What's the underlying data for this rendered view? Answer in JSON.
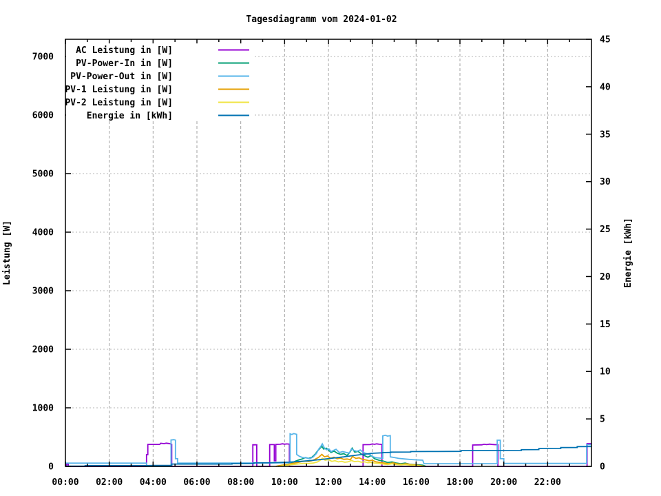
{
  "title": "Tagesdiagramm vom 2024-01-02",
  "axes": {
    "left": {
      "label": "Leistung [W]",
      "tick_values": [
        0,
        1000,
        2000,
        3000,
        4000,
        5000,
        6000,
        7000
      ],
      "tick_labels": [
        "0",
        "1000",
        "2000",
        "3000",
        "4000",
        "5000",
        "6000",
        "7000"
      ],
      "range": [
        0,
        7294
      ]
    },
    "right": {
      "label": "Energie [kWh]",
      "tick_values": [
        0,
        5,
        10,
        15,
        20,
        25,
        30,
        35,
        40,
        45
      ],
      "tick_labels": [
        "0",
        "5",
        "10",
        "15",
        "20",
        "25",
        "30",
        "35",
        "40",
        "45"
      ],
      "range": [
        0,
        45
      ]
    },
    "x": {
      "tick_hours": [
        0,
        2,
        4,
        6,
        8,
        10,
        12,
        14,
        16,
        18,
        20,
        22
      ],
      "tick_labels": [
        "00:00",
        "02:00",
        "04:00",
        "06:00",
        "08:00",
        "10:00",
        "12:00",
        "14:00",
        "16:00",
        "18:00",
        "20:00",
        "22:00"
      ],
      "minor_hours": [
        1,
        3,
        5,
        7,
        9,
        11,
        13,
        15,
        17,
        19,
        21,
        23
      ],
      "range": [
        0,
        24
      ]
    }
  },
  "colors": {
    "grid": "#a0a0a0",
    "axis": "#000000",
    "background": "#ffffff"
  },
  "legend": {
    "position": "top-left"
  },
  "chart_data": {
    "type": "line",
    "title": "Tagesdiagramm vom 2024-01-02",
    "xlabel": "",
    "ylabel": "Leistung [W]",
    "y2label": "Energie [kWh]",
    "xlim_hours": [
      0,
      24
    ],
    "ylim_left_W": [
      0,
      7294
    ],
    "ylim_right_kWh": [
      0,
      45
    ],
    "grid": true,
    "legend_position": "top-left",
    "series": [
      {
        "name": "AC Leistung in [W]",
        "color": "#9400D3",
        "axis": "left",
        "points": [
          [
            0,
            0
          ],
          [
            0.05,
            0
          ],
          [
            0.05,
            40
          ],
          [
            0.13,
            40
          ],
          [
            0.13,
            0
          ],
          [
            3.7,
            0
          ],
          [
            3.7,
            200
          ],
          [
            3.76,
            200
          ],
          [
            3.76,
            375
          ],
          [
            4.3,
            375
          ],
          [
            4.35,
            395
          ],
          [
            4.5,
            388
          ],
          [
            4.6,
            397
          ],
          [
            4.72,
            390
          ],
          [
            4.85,
            378
          ],
          [
            4.85,
            0
          ],
          [
            8.55,
            0
          ],
          [
            8.55,
            368
          ],
          [
            8.73,
            368
          ],
          [
            8.73,
            0
          ],
          [
            9.32,
            0
          ],
          [
            9.32,
            372
          ],
          [
            9.53,
            372
          ],
          [
            9.53,
            95
          ],
          [
            9.6,
            95
          ],
          [
            9.6,
            375
          ],
          [
            9.8,
            378
          ],
          [
            9.9,
            386
          ],
          [
            10.0,
            379
          ],
          [
            10.1,
            384
          ],
          [
            10.22,
            380
          ],
          [
            10.22,
            0
          ],
          [
            13.58,
            0
          ],
          [
            13.58,
            370
          ],
          [
            13.9,
            372
          ],
          [
            14.0,
            383
          ],
          [
            14.1,
            377
          ],
          [
            14.2,
            385
          ],
          [
            14.32,
            378
          ],
          [
            14.44,
            375
          ],
          [
            14.44,
            0
          ],
          [
            18.58,
            0
          ],
          [
            18.58,
            365
          ],
          [
            19.0,
            368
          ],
          [
            19.1,
            378
          ],
          [
            19.22,
            372
          ],
          [
            19.35,
            380
          ],
          [
            19.48,
            374
          ],
          [
            19.6,
            371
          ],
          [
            19.73,
            371
          ],
          [
            19.73,
            0
          ],
          [
            23.8,
            0
          ],
          [
            23.8,
            388
          ],
          [
            24,
            388
          ]
        ]
      },
      {
        "name": "PV-Power-In in [W]",
        "color": "#009E73",
        "axis": "left",
        "points": [
          [
            9.7,
            0
          ],
          [
            9.85,
            14
          ],
          [
            10.0,
            20
          ],
          [
            10.15,
            34
          ],
          [
            10.3,
            55
          ],
          [
            10.5,
            90
          ],
          [
            10.65,
            110
          ],
          [
            10.8,
            126
          ],
          [
            10.95,
            150
          ],
          [
            11.1,
            136
          ],
          [
            11.25,
            156
          ],
          [
            11.4,
            210
          ],
          [
            11.5,
            262
          ],
          [
            11.6,
            302
          ],
          [
            11.7,
            345
          ],
          [
            11.78,
            296
          ],
          [
            11.9,
            312
          ],
          [
            12.0,
            282
          ],
          [
            12.12,
            236
          ],
          [
            12.25,
            262
          ],
          [
            12.4,
            226
          ],
          [
            12.55,
            206
          ],
          [
            12.7,
            216
          ],
          [
            12.85,
            186
          ],
          [
            13.0,
            252
          ],
          [
            13.08,
            312
          ],
          [
            13.2,
            242
          ],
          [
            13.35,
            256
          ],
          [
            13.5,
            212
          ],
          [
            13.65,
            182
          ],
          [
            13.8,
            156
          ],
          [
            13.95,
            186
          ],
          [
            14.1,
            132
          ],
          [
            14.3,
            106
          ],
          [
            14.5,
            92
          ],
          [
            14.7,
            66
          ],
          [
            14.9,
            76
          ],
          [
            15.1,
            56
          ],
          [
            15.3,
            46
          ],
          [
            15.5,
            56
          ],
          [
            15.7,
            36
          ],
          [
            15.9,
            31
          ],
          [
            16.1,
            26
          ],
          [
            16.3,
            20
          ],
          [
            16.45,
            0
          ]
        ]
      },
      {
        "name": "PV-Power-Out in [W]",
        "color": "#56B4E9",
        "axis": "left",
        "points": [
          [
            0,
            55
          ],
          [
            3.7,
            55
          ],
          [
            3.7,
            0
          ],
          [
            4.82,
            0
          ],
          [
            4.82,
            450
          ],
          [
            4.95,
            457
          ],
          [
            5.02,
            448
          ],
          [
            5.02,
            130
          ],
          [
            5.12,
            130
          ],
          [
            5.12,
            55
          ],
          [
            8.3,
            58
          ],
          [
            10.25,
            60
          ],
          [
            10.25,
            555
          ],
          [
            10.33,
            545
          ],
          [
            10.42,
            560
          ],
          [
            10.55,
            548
          ],
          [
            10.55,
            205
          ],
          [
            10.68,
            170
          ],
          [
            10.82,
            152
          ],
          [
            11.0,
            145
          ],
          [
            11.15,
            132
          ],
          [
            11.3,
            160
          ],
          [
            11.45,
            220
          ],
          [
            11.55,
            290
          ],
          [
            11.65,
            340
          ],
          [
            11.72,
            385
          ],
          [
            11.82,
            312
          ],
          [
            11.92,
            282
          ],
          [
            12.02,
            300
          ],
          [
            12.12,
            252
          ],
          [
            12.22,
            270
          ],
          [
            12.35,
            292
          ],
          [
            12.5,
            237
          ],
          [
            12.65,
            252
          ],
          [
            12.8,
            240
          ],
          [
            12.95,
            226
          ],
          [
            13.05,
            300
          ],
          [
            13.17,
            272
          ],
          [
            13.3,
            256
          ],
          [
            13.45,
            280
          ],
          [
            13.6,
            236
          ],
          [
            13.75,
            216
          ],
          [
            13.9,
            200
          ],
          [
            14.05,
            162
          ],
          [
            14.2,
            147
          ],
          [
            14.4,
            140
          ],
          [
            14.48,
            140
          ],
          [
            14.48,
            520
          ],
          [
            14.6,
            532
          ],
          [
            14.7,
            516
          ],
          [
            14.82,
            526
          ],
          [
            14.82,
            162
          ],
          [
            15.0,
            152
          ],
          [
            15.2,
            136
          ],
          [
            15.5,
            126
          ],
          [
            15.8,
            116
          ],
          [
            16.05,
            110
          ],
          [
            16.3,
            106
          ],
          [
            16.36,
            46
          ],
          [
            19.7,
            46
          ],
          [
            19.7,
            447
          ],
          [
            19.84,
            447
          ],
          [
            19.84,
            130
          ],
          [
            20.0,
            130
          ],
          [
            20.0,
            50
          ],
          [
            23.78,
            50
          ],
          [
            23.78,
            370
          ],
          [
            24,
            370
          ]
        ]
      },
      {
        "name": "PV-1 Leistung in [W]",
        "color": "#E69F00",
        "axis": "left",
        "points": [
          [
            9.6,
            0
          ],
          [
            9.78,
            14
          ],
          [
            9.95,
            24
          ],
          [
            10.15,
            34
          ],
          [
            10.35,
            50
          ],
          [
            10.55,
            64
          ],
          [
            10.75,
            80
          ],
          [
            10.95,
            90
          ],
          [
            11.1,
            82
          ],
          [
            11.25,
            96
          ],
          [
            11.4,
            124
          ],
          [
            11.55,
            154
          ],
          [
            11.7,
            205
          ],
          [
            11.82,
            164
          ],
          [
            11.95,
            176
          ],
          [
            12.1,
            140
          ],
          [
            12.25,
            156
          ],
          [
            12.4,
            130
          ],
          [
            12.55,
            142
          ],
          [
            12.7,
            120
          ],
          [
            12.85,
            126
          ],
          [
            13.0,
            114
          ],
          [
            13.1,
            170
          ],
          [
            13.25,
            136
          ],
          [
            13.4,
            146
          ],
          [
            13.55,
            120
          ],
          [
            13.7,
            110
          ],
          [
            13.85,
            96
          ],
          [
            14.0,
            106
          ],
          [
            14.15,
            80
          ],
          [
            14.35,
            66
          ],
          [
            14.55,
            56
          ],
          [
            14.75,
            46
          ],
          [
            14.95,
            60
          ],
          [
            15.15,
            42
          ],
          [
            15.35,
            36
          ],
          [
            15.55,
            45
          ],
          [
            15.75,
            30
          ],
          [
            15.95,
            25
          ],
          [
            16.15,
            16
          ],
          [
            16.4,
            0
          ]
        ]
      },
      {
        "name": "PV-2 Leistung in [W]",
        "color": "#F0E442",
        "axis": "left",
        "points": [
          [
            9.7,
            0
          ],
          [
            9.9,
            10
          ],
          [
            10.1,
            18
          ],
          [
            10.3,
            28
          ],
          [
            10.5,
            38
          ],
          [
            10.7,
            45
          ],
          [
            10.9,
            52
          ],
          [
            11.1,
            48
          ],
          [
            11.3,
            56
          ],
          [
            11.5,
            76
          ],
          [
            11.65,
            110
          ],
          [
            11.72,
            140
          ],
          [
            11.85,
            106
          ],
          [
            12.0,
            116
          ],
          [
            12.15,
            86
          ],
          [
            12.3,
            96
          ],
          [
            12.45,
            76
          ],
          [
            12.6,
            86
          ],
          [
            12.75,
            70
          ],
          [
            12.9,
            78
          ],
          [
            13.05,
            100
          ],
          [
            13.2,
            80
          ],
          [
            13.35,
            88
          ],
          [
            13.5,
            72
          ],
          [
            13.65,
            78
          ],
          [
            13.8,
            62
          ],
          [
            13.95,
            68
          ],
          [
            14.1,
            58
          ],
          [
            14.3,
            48
          ],
          [
            14.5,
            40
          ],
          [
            14.7,
            32
          ],
          [
            14.9,
            45
          ],
          [
            15.1,
            30
          ],
          [
            15.3,
            26
          ],
          [
            15.5,
            32
          ],
          [
            15.7,
            22
          ],
          [
            15.9,
            18
          ],
          [
            16.1,
            12
          ],
          [
            16.35,
            0
          ]
        ]
      },
      {
        "name": "Energie in [kWh]",
        "color": "#0072B2",
        "axis": "right",
        "points": [
          [
            0,
            0.02
          ],
          [
            0.9,
            0.02
          ],
          [
            0.9,
            0.08
          ],
          [
            3.7,
            0.08
          ],
          [
            4.0,
            0.1
          ],
          [
            4.85,
            0.1
          ],
          [
            4.85,
            0.25
          ],
          [
            7.6,
            0.25
          ],
          [
            7.6,
            0.3
          ],
          [
            8.6,
            0.31
          ],
          [
            8.6,
            0.36
          ],
          [
            9.3,
            0.38
          ],
          [
            10.2,
            0.44
          ],
          [
            10.7,
            0.52
          ],
          [
            11.2,
            0.62
          ],
          [
            11.7,
            0.73
          ],
          [
            12.2,
            0.87
          ],
          [
            12.7,
            1.0
          ],
          [
            13.2,
            1.16
          ],
          [
            13.7,
            1.3
          ],
          [
            14.0,
            1.38
          ],
          [
            14.48,
            1.43
          ],
          [
            14.48,
            1.45
          ],
          [
            14.85,
            1.47
          ],
          [
            14.85,
            1.5
          ],
          [
            15.75,
            1.52
          ],
          [
            15.75,
            1.56
          ],
          [
            16.6,
            1.57
          ],
          [
            18.05,
            1.58
          ],
          [
            18.05,
            1.66
          ],
          [
            20.8,
            1.68
          ],
          [
            20.8,
            1.76
          ],
          [
            21.6,
            1.77
          ],
          [
            21.6,
            1.88
          ],
          [
            22.6,
            1.89
          ],
          [
            22.6,
            1.98
          ],
          [
            23.35,
            1.99
          ],
          [
            23.35,
            2.08
          ],
          [
            24,
            2.09
          ]
        ]
      }
    ]
  }
}
